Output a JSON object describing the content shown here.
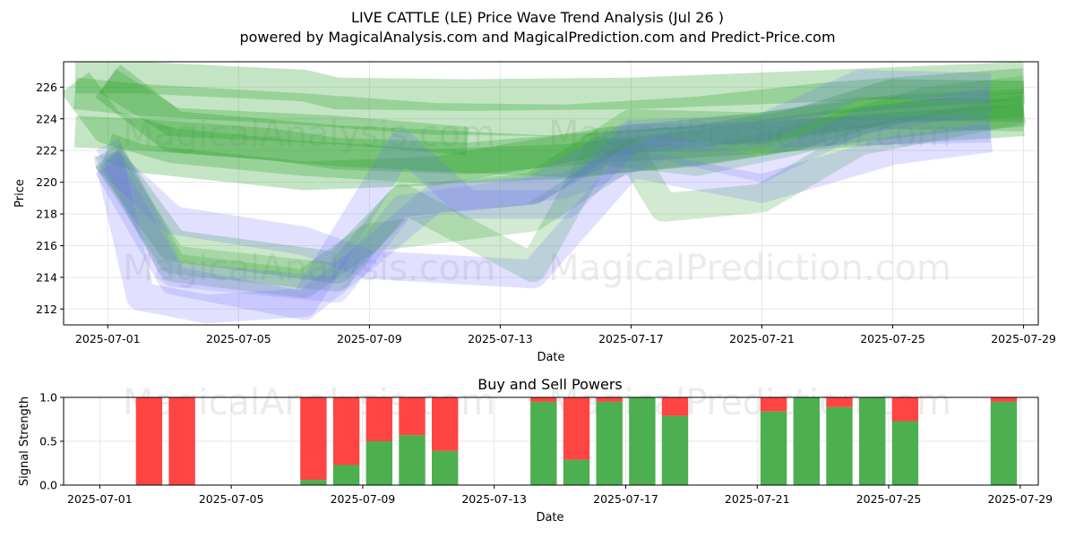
{
  "page": {
    "title_line1": "LIVE CATTLE (LE) Price Wave Trend Analysis (Jul 26 )",
    "title_line2": "powered by MagicalAnalysis.com and MagicalPrediction.com and Predict-Price.com",
    "watermarks": [
      "MagicalAnalysis.com",
      "MagicalPrediction.com"
    ]
  },
  "colors": {
    "green_band": "#2ca02c",
    "blue_band": "#6a6aff",
    "buy": "#4caf50",
    "sell": "#ff4444",
    "grid": "#e6e6e6"
  },
  "chart_data": [
    {
      "type": "area",
      "title": "",
      "xlabel": "Date",
      "ylabel": "Price",
      "xlim": [
        "2025-06-30",
        "2025-07-29"
      ],
      "ylim": [
        211,
        227.6
      ],
      "grid": true,
      "x_ticks": [
        "2025-07-01",
        "2025-07-05",
        "2025-07-09",
        "2025-07-13",
        "2025-07-17",
        "2025-07-21",
        "2025-07-25",
        "2025-07-29"
      ],
      "y_ticks": [
        212,
        214,
        216,
        218,
        220,
        222,
        224,
        226
      ],
      "series": [
        {
          "color": "green",
          "width": 2.2,
          "opacity": 0.28,
          "points": [
            [
              "2025-06-30",
              226.3
            ],
            [
              "2025-07-01",
              223.5
            ],
            [
              "2025-07-03",
              222.3
            ],
            [
              "2025-07-07",
              221.5
            ],
            [
              "2025-07-11",
              221.0
            ],
            [
              "2025-07-15",
              221.3
            ],
            [
              "2025-07-19",
              222.2
            ],
            [
              "2025-07-23",
              223.4
            ],
            [
              "2025-07-27",
              224.3
            ],
            [
              "2025-07-29",
              224.6
            ]
          ]
        },
        {
          "color": "green",
          "width": 2.0,
          "opacity": 0.28,
          "points": [
            [
              "2025-06-30",
              225.6
            ],
            [
              "2025-07-02",
              225.2
            ],
            [
              "2025-07-07",
              224.6
            ],
            [
              "2025-07-11",
              224.0
            ],
            [
              "2025-07-15",
              223.9
            ],
            [
              "2025-07-19",
              224.4
            ],
            [
              "2025-07-23",
              225.3
            ],
            [
              "2025-07-29",
              226.2
            ]
          ]
        },
        {
          "color": "green",
          "width": 2.0,
          "opacity": 0.28,
          "points": [
            [
              "2025-06-30",
              226.6
            ],
            [
              "2025-07-02",
              226.6
            ],
            [
              "2025-07-07",
              226.1
            ],
            [
              "2025-07-08",
              225.6
            ],
            [
              "2025-07-12",
              225.5
            ],
            [
              "2025-07-17",
              225.6
            ],
            [
              "2025-07-22",
              226.0
            ],
            [
              "2025-07-29",
              226.6
            ]
          ]
        },
        {
          "color": "green",
          "width": 2.0,
          "opacity": 0.28,
          "points": [
            [
              "2025-06-30",
              223.2
            ],
            [
              "2025-07-02",
              223.0
            ],
            [
              "2025-07-06",
              222.4
            ],
            [
              "2025-07-08",
              221.8
            ],
            [
              "2025-07-12",
              221.5
            ],
            [
              "2025-07-16",
              222.2
            ],
            [
              "2025-07-21",
              222.8
            ],
            [
              "2025-07-25",
              223.4
            ],
            [
              "2025-07-29",
              223.9
            ]
          ]
        },
        {
          "color": "green",
          "width": 2.6,
          "opacity": 0.3,
          "points": [
            [
              "2025-07-01",
              226.4
            ],
            [
              "2025-07-03",
              223.2
            ],
            [
              "2025-07-08",
              222.3
            ],
            [
              "2025-07-11",
              222.0
            ],
            [
              "2025-07-15",
              221.6
            ],
            [
              "2025-07-19",
              222.3
            ],
            [
              "2025-07-22",
              223.3
            ],
            [
              "2025-07-25",
              225.2
            ],
            [
              "2025-07-29",
              225.1
            ]
          ]
        },
        {
          "color": "green",
          "width": 1.8,
          "opacity": 0.28,
          "points": [
            [
              "2025-07-01",
              222.2
            ],
            [
              "2025-07-02",
              221.5
            ],
            [
              "2025-07-07",
              220.4
            ],
            [
              "2025-07-11",
              220.7
            ],
            [
              "2025-07-16",
              222.5
            ],
            [
              "2025-07-21",
              223.5
            ],
            [
              "2025-07-25",
              224.6
            ],
            [
              "2025-07-29",
              225.0
            ]
          ]
        },
        {
          "color": "green",
          "width": 1.8,
          "opacity": 0.28,
          "points": [
            [
              "2025-07-01",
              226.4
            ],
            [
              "2025-07-03",
              223.8
            ],
            [
              "2025-07-08",
              223.3
            ],
            [
              "2025-07-12",
              222.6
            ]
          ]
        },
        {
          "color": "green",
          "width": 2.0,
          "opacity": 0.25,
          "points": [
            [
              "2025-07-01",
              221.6
            ],
            [
              "2025-07-03",
              216.0
            ],
            [
              "2025-07-08",
              214.6
            ],
            [
              "2025-07-10",
              218.8
            ],
            [
              "2025-07-14",
              219.6
            ],
            [
              "2025-07-17",
              223.6
            ],
            [
              "2025-07-21",
              223.4
            ],
            [
              "2025-07-24",
              224.4
            ],
            [
              "2025-07-29",
              224.2
            ]
          ]
        },
        {
          "color": "green",
          "width": 1.8,
          "opacity": 0.22,
          "points": [
            [
              "2025-07-01",
              222.0
            ],
            [
              "2025-07-03",
              214.6
            ],
            [
              "2025-07-07",
              213.6
            ],
            [
              "2025-07-09",
              216.5
            ],
            [
              "2025-07-14",
              217.8
            ],
            [
              "2025-07-17",
              221.8
            ],
            [
              "2025-07-18",
              218.4
            ],
            [
              "2025-07-21",
              219.0
            ],
            [
              "2025-07-24",
              222.6
            ],
            [
              "2025-07-29",
              224.6
            ]
          ]
        },
        {
          "color": "green",
          "width": 1.8,
          "opacity": 0.22,
          "points": [
            [
              "2025-07-01",
              221.4
            ],
            [
              "2025-07-03",
              215.1
            ],
            [
              "2025-07-08",
              214.0
            ],
            [
              "2025-07-10",
              219.0
            ],
            [
              "2025-07-14",
              214.6
            ],
            [
              "2025-07-16",
              222.0
            ],
            [
              "2025-07-19",
              221.3
            ],
            [
              "2025-07-22",
              222.6
            ],
            [
              "2025-07-26",
              225.1
            ],
            [
              "2025-07-29",
              225.8
            ]
          ]
        },
        {
          "color": "blue",
          "width": 1.8,
          "opacity": 0.2,
          "points": [
            [
              "2025-07-01",
              221.0
            ],
            [
              "2025-07-03",
              213.8
            ],
            [
              "2025-07-07",
              212.2
            ],
            [
              "2025-07-09",
              215.5
            ],
            [
              "2025-07-11",
              219.0
            ],
            [
              "2025-07-14",
              219.5
            ],
            [
              "2025-07-17",
              223.0
            ],
            [
              "2025-07-21",
              223.4
            ],
            [
              "2025-07-24",
              226.2
            ],
            [
              "2025-07-28",
              226.0
            ]
          ]
        },
        {
          "color": "blue",
          "width": 1.8,
          "opacity": 0.2,
          "points": [
            [
              "2025-07-01",
              221.4
            ],
            [
              "2025-07-03",
              217.6
            ],
            [
              "2025-07-07",
              216.3
            ],
            [
              "2025-07-09",
              214.8
            ],
            [
              "2025-07-14",
              214.2
            ],
            [
              "2025-07-17",
              221.2
            ],
            [
              "2025-07-21",
              219.6
            ],
            [
              "2025-07-23",
              220.8
            ],
            [
              "2025-07-25",
              222.0
            ],
            [
              "2025-07-28",
              222.8
            ]
          ]
        },
        {
          "color": "blue",
          "width": 1.8,
          "opacity": 0.2,
          "points": [
            [
              "2025-07-01",
              221.8
            ],
            [
              "2025-07-02",
              212.8
            ],
            [
              "2025-07-04",
              212.0
            ],
            [
              "2025-07-07",
              212.4
            ],
            [
              "2025-07-10",
              222.4
            ],
            [
              "2025-07-12",
              218.6
            ],
            [
              "2025-07-15",
              218.6
            ],
            [
              "2025-07-17",
              222.8
            ],
            [
              "2025-07-19",
              222.8
            ],
            [
              "2025-07-23",
              223.2
            ],
            [
              "2025-07-28",
              223.4
            ]
          ]
        },
        {
          "color": "blue",
          "width": 1.6,
          "opacity": 0.18,
          "points": [
            [
              "2025-07-01",
              222.4
            ],
            [
              "2025-07-03",
              214.2
            ],
            [
              "2025-07-08",
              213.2
            ],
            [
              "2025-07-10",
              218.4
            ],
            [
              "2025-07-15",
              219.8
            ],
            [
              "2025-07-18",
              222.2
            ],
            [
              "2025-07-21",
              220.8
            ],
            [
              "2025-07-24",
              223.8
            ],
            [
              "2025-07-28",
              225.2
            ]
          ]
        }
      ]
    },
    {
      "type": "bar",
      "title": "Buy and Sell Powers",
      "xlabel": "Date",
      "ylabel": "Signal Strength",
      "xlim": [
        "2025-06-30",
        "2025-07-29"
      ],
      "ylim": [
        0,
        1.0
      ],
      "grid": true,
      "x_ticks": [
        "2025-07-01",
        "2025-07-05",
        "2025-07-09",
        "2025-07-13",
        "2025-07-17",
        "2025-07-21",
        "2025-07-25",
        "2025-07-29"
      ],
      "y_ticks": [
        "0.0",
        "0.5",
        "1.0"
      ],
      "x": [
        "2025-07-02",
        "2025-07-03",
        "2025-07-07",
        "2025-07-08",
        "2025-07-09",
        "2025-07-10",
        "2025-07-11",
        "2025-07-14",
        "2025-07-15",
        "2025-07-16",
        "2025-07-17",
        "2025-07-18",
        "2025-07-21",
        "2025-07-22",
        "2025-07-23",
        "2025-07-24",
        "2025-07-25",
        "2025-07-28"
      ],
      "series": [
        {
          "kind": "buy",
          "values": [
            0.0,
            0.0,
            0.06,
            0.23,
            0.5,
            0.57,
            0.39,
            0.95,
            0.29,
            0.95,
            1.0,
            0.79,
            0.84,
            1.0,
            0.89,
            1.0,
            0.73,
            0.95
          ]
        },
        {
          "kind": "sell",
          "values": [
            1.0,
            1.0,
            0.94,
            0.77,
            0.5,
            0.43,
            0.61,
            0.05,
            0.71,
            0.05,
            0.0,
            0.21,
            0.16,
            0.0,
            0.11,
            0.0,
            0.27,
            0.05
          ]
        }
      ]
    }
  ]
}
